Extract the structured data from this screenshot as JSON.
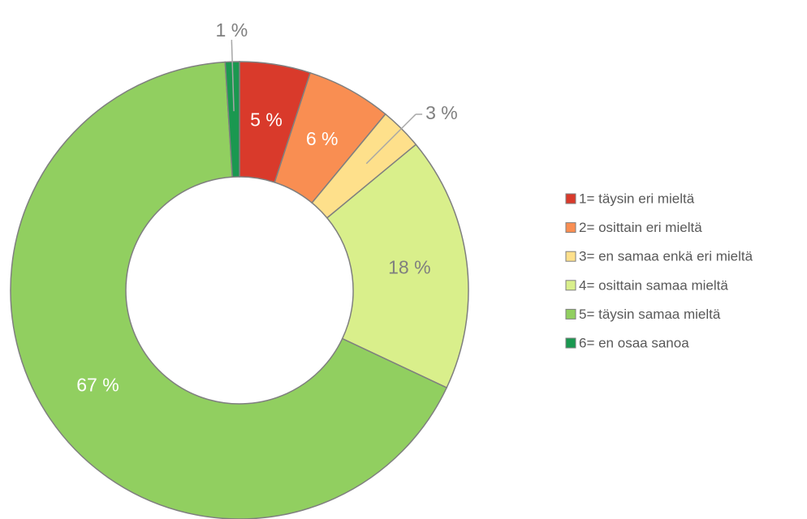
{
  "chart_data": {
    "type": "donut",
    "categories": [
      "1= täysin eri mieltä",
      "2= osittain eri mieltä",
      "3= en samaa enkä eri mieltä",
      "4= osittain samaa mieltä",
      "5= täysin samaa mieltä",
      "6= en osaa sanoa"
    ],
    "values": [
      5,
      6,
      3,
      18,
      67,
      1
    ],
    "value_labels": [
      "5 %",
      "6 %",
      "3 %",
      "18 %",
      "67 %",
      "1 %"
    ],
    "colors": [
      "#d93a2b",
      "#f98e52",
      "#fee08b",
      "#d9ef8b",
      "#91cf60",
      "#1a9850"
    ],
    "label_colors": [
      "#ffffff",
      "#ffffff",
      "#7f7f7f",
      "#7f7f7f",
      "#ffffff",
      "#7f7f7f"
    ],
    "legend": "right"
  }
}
